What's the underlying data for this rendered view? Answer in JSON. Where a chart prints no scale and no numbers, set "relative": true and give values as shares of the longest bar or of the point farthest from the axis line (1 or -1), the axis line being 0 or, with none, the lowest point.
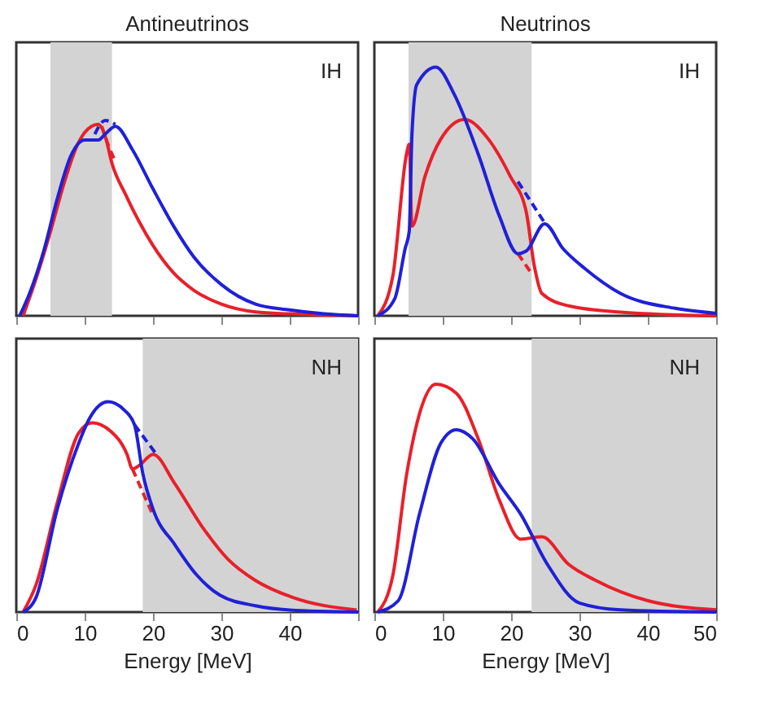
{
  "chart_data": [
    {
      "type": "line",
      "title": "Antineutrinos",
      "relative": true,
      "xlim": [
        0,
        50
      ],
      "xticks": [
        0,
        10,
        20,
        30,
        40,
        50
      ],
      "tick_labels": false,
      "grid": false,
      "annotations": [
        "IH"
      ],
      "bands": [
        {
          "axis": "x",
          "from": 5,
          "to": 14,
          "color": "#d3d3d3"
        }
      ],
      "series": [
        {
          "color": "#e8202a",
          "x": [
            1,
            3,
            5,
            7,
            9,
            11,
            12,
            13,
            14,
            16,
            18,
            20,
            23,
            26,
            30,
            35,
            40,
            50
          ],
          "values": [
            0,
            0.2,
            0.43,
            0.68,
            0.88,
            0.97,
            0.98,
            0.92,
            0.78,
            0.62,
            0.48,
            0.36,
            0.22,
            0.13,
            0.06,
            0.02,
            0.01,
            0
          ]
        },
        {
          "color": "#e8202a",
          "line_style": "dashed",
          "x": [
            12.5,
            13.5,
            14.5
          ],
          "values": [
            0.97,
            0.87,
            0.79
          ]
        },
        {
          "color": "#2020d8",
          "x": [
            0.5,
            2,
            4,
            6,
            8,
            10,
            12,
            13,
            14.5,
            17,
            20,
            23,
            26,
            30,
            35,
            40,
            45,
            50
          ],
          "values": [
            0,
            0.12,
            0.33,
            0.6,
            0.82,
            0.9,
            0.9,
            0.93,
            0.97,
            0.85,
            0.65,
            0.46,
            0.3,
            0.16,
            0.06,
            0.03,
            0.01,
            0
          ]
        },
        {
          "color": "#2020d8",
          "line_style": "dashed",
          "x": [
            11.5,
            13,
            14.5
          ],
          "values": [
            0.93,
            1,
            0.98
          ]
        }
      ]
    },
    {
      "type": "line",
      "title": "Neutrinos",
      "relative": true,
      "xlim": [
        0,
        50
      ],
      "xticks": [
        0,
        10,
        20,
        30,
        40,
        50
      ],
      "tick_labels": false,
      "grid": false,
      "annotations": [
        "IH"
      ],
      "bands": [
        {
          "axis": "x",
          "from": 5,
          "to": 23,
          "color": "#d3d3d3"
        }
      ],
      "series": [
        {
          "color": "#e8202a",
          "x": [
            0.5,
            2.7,
            4.7,
            5.1,
            5.5,
            7.4,
            9.7,
            13.2,
            16.7,
            19.9,
            22.2,
            23.4,
            24.5,
            28.4,
            36,
            50
          ],
          "values": [
            0,
            0.16,
            0.65,
            0.69,
            0.36,
            0.56,
            0.71,
            0.79,
            0.71,
            0.56,
            0.42,
            0.2,
            0.09,
            0.04,
            0.015,
            0
          ]
        },
        {
          "color": "#e8202a",
          "line_style": "dashed",
          "x": [
            21,
            23
          ],
          "values": [
            0.25,
            0.17
          ]
        },
        {
          "color": "#2020d8",
          "x": [
            0.5,
            3,
            4.5,
            5.1,
            5.5,
            6.2,
            9,
            11.7,
            15.2,
            18.3,
            21,
            22.2,
            24.9,
            27.6,
            30.8,
            36,
            44,
            50
          ],
          "values": [
            0,
            0.07,
            0.27,
            0.34,
            0.73,
            0.93,
            1,
            0.89,
            0.65,
            0.4,
            0.25,
            0.26,
            0.37,
            0.27,
            0.19,
            0.09,
            0.03,
            0.01
          ]
        },
        {
          "color": "#2020d8",
          "line_style": "dashed",
          "x": [
            21,
            25
          ],
          "values": [
            0.54,
            0.37
          ]
        }
      ]
    },
    {
      "type": "line",
      "relative": true,
      "xlabel": "Energy [MeV]",
      "xlim": [
        0,
        50
      ],
      "xticks": [
        0,
        10,
        20,
        30,
        40,
        {
          "value": 50,
          "label": null
        }
      ],
      "tick_labels": "x",
      "grid": false,
      "annotations": [
        "NH"
      ],
      "bands": [
        {
          "axis": "x",
          "from": 18.5,
          "to": 50,
          "color": "#d3d3d3"
        }
      ],
      "series": [
        {
          "color": "#e8202a",
          "x": [
            1,
            2.9,
            6,
            9.1,
            11.1,
            13.8,
            16.2,
            17,
            18.1,
            20,
            23.2,
            27.1,
            31,
            35,
            40.4,
            49.8
          ],
          "values": [
            0,
            0.13,
            0.52,
            0.85,
            0.9,
            0.86,
            0.75,
            0.68,
            0.7,
            0.75,
            0.61,
            0.41,
            0.25,
            0.15,
            0.07,
            0.01
          ]
        },
        {
          "color": "#e8202a",
          "line_style": "dashed",
          "x": [
            17,
            20
          ],
          "values": [
            0.68,
            0.46
          ]
        },
        {
          "color": "#2020d8",
          "x": [
            1,
            2.9,
            6,
            9.1,
            10.7,
            13.4,
            15.8,
            17.3,
            18.5,
            20,
            23.2,
            26.3,
            29.8,
            35,
            40,
            50
          ],
          "values": [
            0,
            0.07,
            0.49,
            0.8,
            0.92,
            1,
            0.96,
            0.89,
            0.66,
            0.49,
            0.32,
            0.18,
            0.08,
            0.03,
            0.01,
            0
          ]
        },
        {
          "color": "#2020d8",
          "line_style": "dashed",
          "x": [
            17.3,
            20.5
          ],
          "values": [
            0.89,
            0.75
          ]
        }
      ]
    },
    {
      "type": "line",
      "relative": true,
      "xlabel": "Energy [MeV]",
      "xlim": [
        0,
        50
      ],
      "xticks": [
        0,
        10,
        20,
        30,
        40,
        50
      ],
      "tick_labels": "x",
      "grid": false,
      "annotations": [
        "NH"
      ],
      "bands": [
        {
          "axis": "x",
          "from": 23,
          "to": 50,
          "color": "#d3d3d3"
        }
      ],
      "series": [
        {
          "color": "#e8202a",
          "x": [
            0.5,
            2.7,
            4.7,
            6.6,
            9,
            12,
            15.2,
            18.3,
            21.4,
            24.5,
            28.4,
            32.3,
            40,
            50
          ],
          "values": [
            0,
            0.16,
            0.6,
            0.87,
            1,
            0.96,
            0.76,
            0.49,
            0.32,
            0.33,
            0.21,
            0.14,
            0.05,
            0.01
          ]
        },
        {
          "color": "#2020d8",
          "x": [
            0.5,
            3.5,
            6.6,
            9.7,
            12,
            14.4,
            18.3,
            21.4,
            25.3,
            30,
            36,
            50
          ],
          "values": [
            0,
            0.05,
            0.43,
            0.74,
            0.8,
            0.76,
            0.56,
            0.43,
            0.21,
            0.04,
            0.01,
            0
          ]
        }
      ]
    }
  ]
}
